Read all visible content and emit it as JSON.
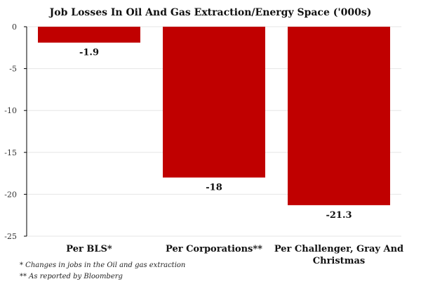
{
  "chart_data": {
    "type": "bar",
    "title": "Job Losses In Oil And Gas Extraction/Energy Space ('000s)",
    "categories": [
      "Per BLS*",
      "Per Corporations**",
      "Per Challenger, Gray And Christmas"
    ],
    "values": [
      -1.9,
      -18,
      -21.3
    ],
    "value_labels": [
      "-1.9",
      "-18",
      "-21.3"
    ],
    "ylim": [
      -25,
      0
    ],
    "yticks": [
      0,
      -5,
      -10,
      -15,
      -20,
      -25
    ],
    "xlabel": "",
    "ylabel": "",
    "grid": true,
    "bar_color": "#c00000"
  },
  "footnotes": [
    "*   Changes in jobs in the Oil and gas extraction",
    "** As reported by Bloomberg"
  ]
}
